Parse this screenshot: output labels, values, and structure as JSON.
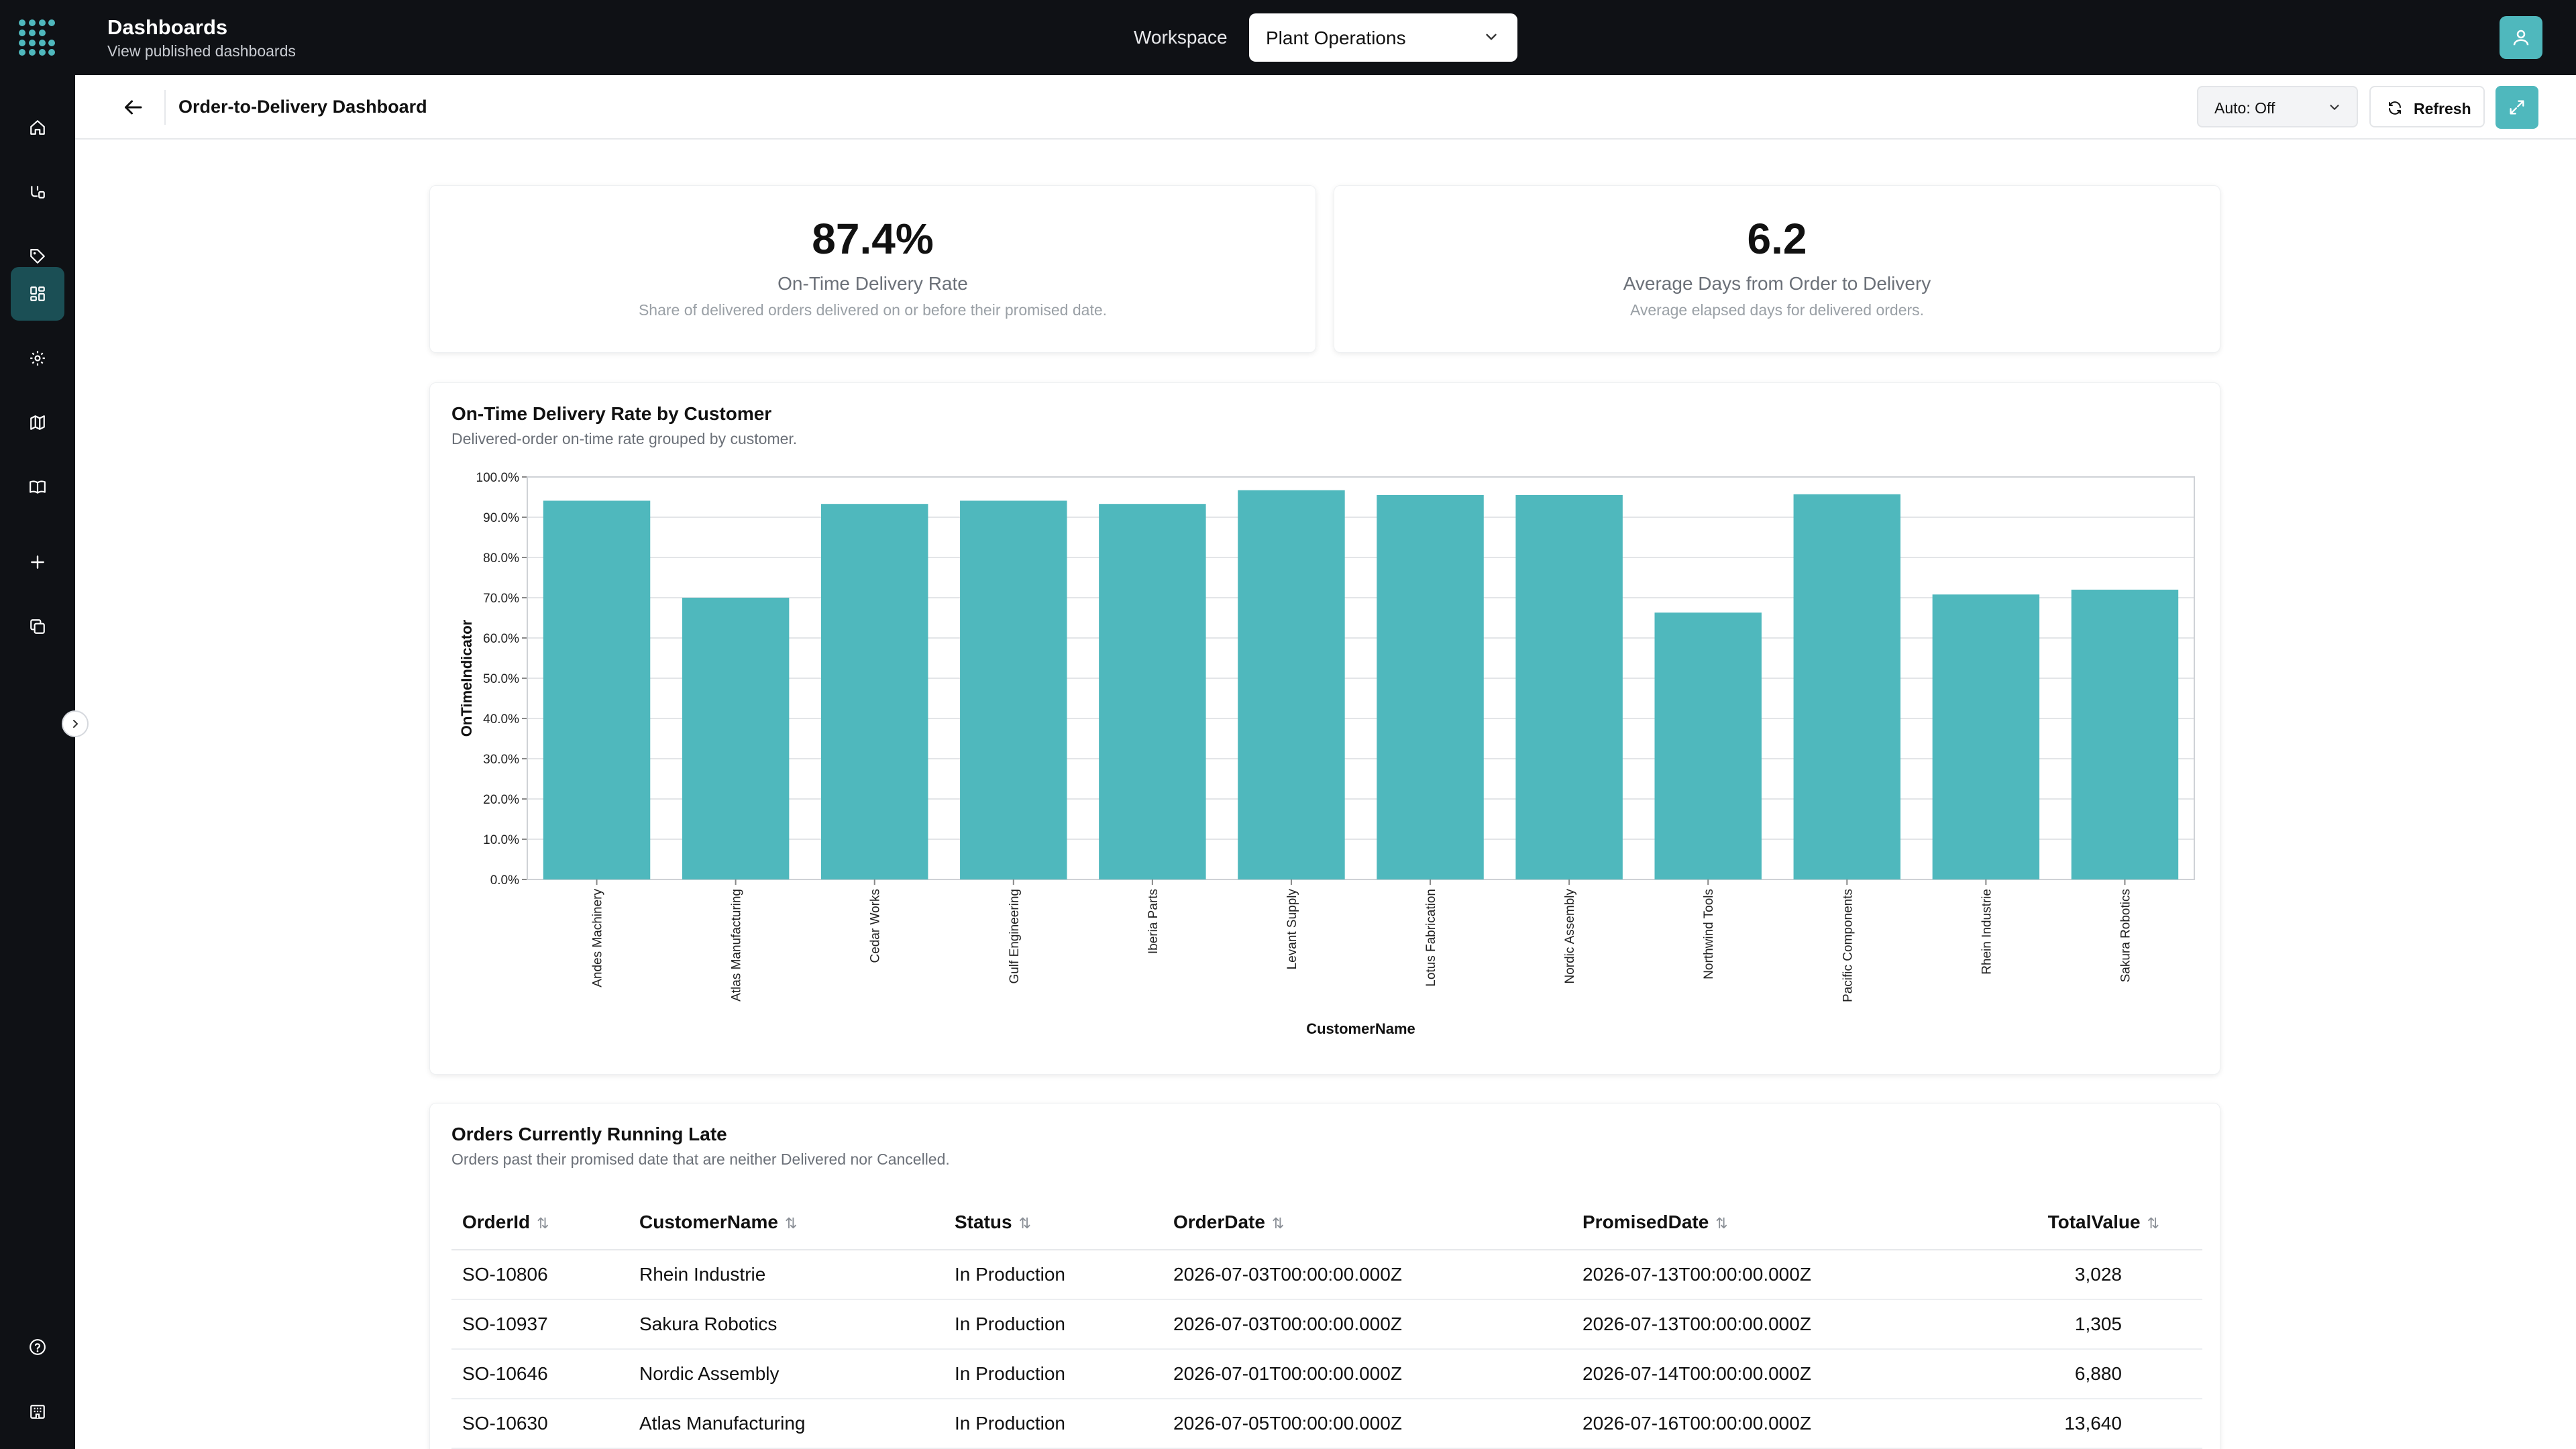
{
  "app": {
    "title": "Dashboards",
    "subtitle": "View published dashboards",
    "workspace_label": "Workspace",
    "workspace_value": "Plant Operations",
    "accent_color": "#4fb8bd"
  },
  "sidebar": {
    "items": [
      {
        "icon": "home-icon"
      },
      {
        "icon": "pipeline-icon"
      },
      {
        "icon": "tag-icon"
      },
      {
        "icon": "dashboard-icon",
        "active": true
      },
      {
        "icon": "settings-icon"
      },
      {
        "icon": "map-icon"
      },
      {
        "icon": "book-icon"
      },
      {
        "icon": "plus-icon"
      },
      {
        "icon": "copy-icon"
      },
      {
        "icon": "help-icon"
      },
      {
        "icon": "building-icon"
      }
    ]
  },
  "header": {
    "title": "Order-to-Delivery Dashboard",
    "auto_refresh": "Auto: Off",
    "refresh_label": "Refresh"
  },
  "kpis": [
    {
      "value": "87.4%",
      "label": "On-Time Delivery Rate",
      "description": "Share of delivered orders delivered on or before their promised date."
    },
    {
      "value": "6.2",
      "label": "Average Days from Order to Delivery",
      "description": "Average elapsed days for delivered orders."
    }
  ],
  "chart_card": {
    "title": "On-Time Delivery Rate by Customer",
    "subtitle": "Delivered-order on-time rate grouped by customer."
  },
  "chart_data": {
    "type": "bar",
    "categories": [
      "Andes Machinery",
      "Atlas Manufacturing",
      "Cedar Works",
      "Gulf Engineering",
      "Iberia Parts",
      "Levant Supply",
      "Lotus Fabrication",
      "Nordic Assembly",
      "Northwind Tools",
      "Pacific Components",
      "Rhein Industrie",
      "Sakura Robotics"
    ],
    "values": [
      94.1,
      70.0,
      93.3,
      94.1,
      93.3,
      96.7,
      95.5,
      95.5,
      66.3,
      95.7,
      70.8,
      72.0
    ],
    "xlabel": "CustomerName",
    "ylabel": "OnTimeIndicator",
    "ylim": [
      0,
      100
    ],
    "yticks": [
      "0.0%",
      "10.0%",
      "20.0%",
      "30.0%",
      "40.0%",
      "50.0%",
      "60.0%",
      "70.0%",
      "80.0%",
      "90.0%",
      "100.0%"
    ],
    "grid": true,
    "color": "#4fb8bd"
  },
  "table_card": {
    "title": "Orders Currently Running Late",
    "subtitle": "Orders past their promised date that are neither Delivered nor Cancelled.",
    "columns": [
      "OrderId",
      "CustomerName",
      "Status",
      "OrderDate",
      "PromisedDate",
      "TotalValue"
    ],
    "rows": [
      [
        "SO-10806",
        "Rhein Industrie",
        "In Production",
        "2026-07-03T00:00:00.000Z",
        "2026-07-13T00:00:00.000Z",
        "3,028"
      ],
      [
        "SO-10937",
        "Sakura Robotics",
        "In Production",
        "2026-07-03T00:00:00.000Z",
        "2026-07-13T00:00:00.000Z",
        "1,305"
      ],
      [
        "SO-10646",
        "Nordic Assembly",
        "In Production",
        "2026-07-01T00:00:00.000Z",
        "2026-07-14T00:00:00.000Z",
        "6,880"
      ],
      [
        "SO-10630",
        "Atlas Manufacturing",
        "In Production",
        "2026-07-05T00:00:00.000Z",
        "2026-07-16T00:00:00.000Z",
        "13,640"
      ]
    ]
  }
}
